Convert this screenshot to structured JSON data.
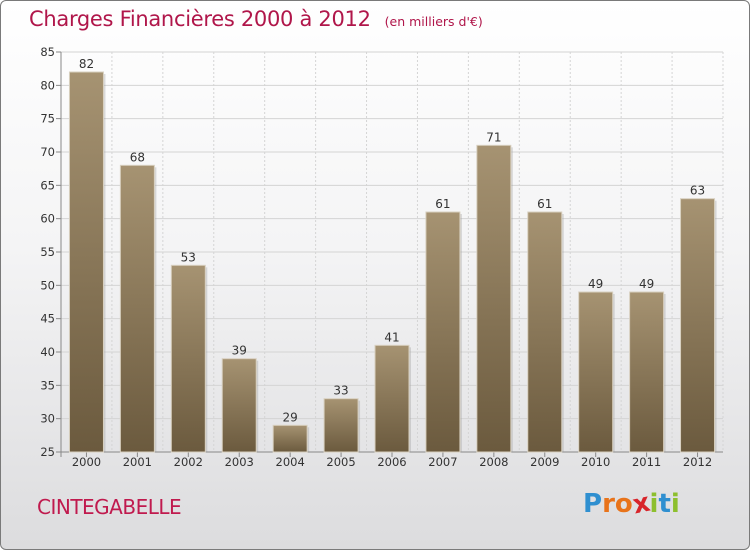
{
  "header": {
    "title": "Charges Financières 2000 à 2012",
    "subtitle": "(en milliers d'€)"
  },
  "footer": {
    "commune": "CINTEGABELLE",
    "logo": "Proxiti",
    "logo_letters": [
      {
        "char": "P",
        "color": "#2f8fd0"
      },
      {
        "char": "r",
        "color": "#e8731a"
      },
      {
        "char": "o",
        "color": "#e8731a"
      },
      {
        "char": "x",
        "color": "#d8242a"
      },
      {
        "char": "i",
        "color": "#8dbf2e"
      },
      {
        "char": "t",
        "color": "#2f8fd0"
      },
      {
        "char": "i",
        "color": "#8dbf2e"
      }
    ]
  },
  "colors": {
    "title": "#b0164a",
    "bar_top": "#a69372",
    "bar_bottom": "#6b5a3e",
    "grid": "#d4d4d4"
  },
  "chart_data": {
    "type": "bar",
    "title": "Charges Financières 2000 à 2012",
    "subtitle": "(en milliers d'€)",
    "categories": [
      "2000",
      "2001",
      "2002",
      "2003",
      "2004",
      "2005",
      "2006",
      "2007",
      "2008",
      "2009",
      "2010",
      "2011",
      "2012"
    ],
    "values": [
      82,
      68,
      53,
      39,
      29,
      33,
      41,
      61,
      71,
      61,
      49,
      49,
      63
    ],
    "ylim": [
      25,
      85
    ],
    "yticks": [
      25,
      30,
      35,
      40,
      45,
      50,
      55,
      60,
      65,
      70,
      75,
      80,
      85
    ],
    "grid": true,
    "xlabel": "",
    "ylabel": ""
  }
}
